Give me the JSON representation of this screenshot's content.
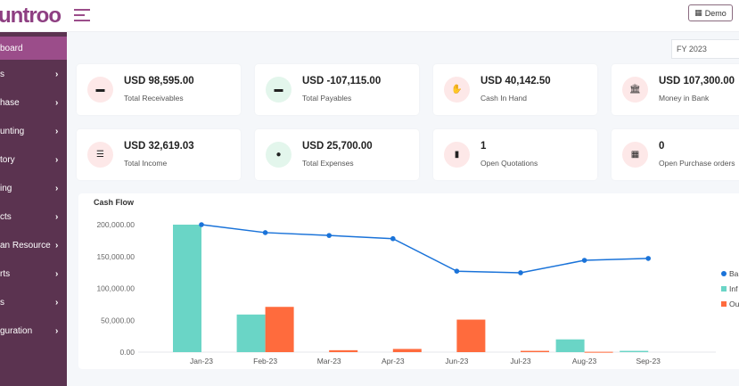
{
  "header": {
    "logo": "untroo",
    "company_button": "Demo",
    "icons": {
      "menu": "hamburger-icon",
      "company": "building-icon"
    }
  },
  "sidebar": {
    "items": [
      {
        "label": "board",
        "active": true
      },
      {
        "label": "s"
      },
      {
        "label": "hase"
      },
      {
        "label": "unting"
      },
      {
        "label": "tory"
      },
      {
        "label": "ing"
      },
      {
        "label": "cts"
      },
      {
        "label": "an Resource"
      },
      {
        "label": "rts"
      },
      {
        "label": "s"
      },
      {
        "label": "guration"
      }
    ],
    "chevron": "›"
  },
  "fiscal_year": "FY 2023",
  "cards": [
    {
      "value": "USD 98,595.00",
      "label": "Total Receivables",
      "icon": "money-icon",
      "color": "#fde8e8"
    },
    {
      "value": "USD -107,115.00",
      "label": "Total Payables",
      "icon": "money-icon",
      "color": "#e3f6ec"
    },
    {
      "value": "USD 40,142.50",
      "label": "Cash In Hand",
      "icon": "hand-coin-icon",
      "color": "#fde8e8"
    },
    {
      "value": "USD 107,300.00",
      "label": "Money in Bank",
      "icon": "bank-icon",
      "color": "#fde8e8"
    },
    {
      "value": "USD 32,619.03",
      "label": "Total Income",
      "icon": "list-icon",
      "color": "#fde8e8"
    },
    {
      "value": "USD 25,700.00",
      "label": "Total Expenses",
      "icon": "coins-icon",
      "color": "#e3f6ec"
    },
    {
      "value": "1",
      "label": "Open Quotations",
      "icon": "document-icon",
      "color": "#fde8e8"
    },
    {
      "value": "0",
      "label": "Open Purchase orders",
      "icon": "calendar-icon",
      "color": "#fde8e8"
    }
  ],
  "chart_data": {
    "type": "bar",
    "title": "Cash Flow",
    "categories": [
      "Jan-23",
      "Feb-23",
      "Mar-23",
      "Apr-23",
      "Jun-23",
      "Jul-23",
      "Aug-23",
      "Sep-23"
    ],
    "ylim": [
      0,
      200000
    ],
    "yticks": [
      "0.00",
      "50,000.00",
      "100,000.00",
      "150,000.00",
      "200,000.00"
    ],
    "legend_position": "right",
    "series": [
      {
        "name": "Ba",
        "type": "line",
        "color": "#1a73d9",
        "values": [
          200000,
          187500,
          183000,
          178000,
          127000,
          124500,
          144000,
          147000
        ]
      },
      {
        "name": "Inf",
        "type": "bar",
        "color": "#6ad5c6",
        "values": [
          200000,
          59000,
          0,
          0,
          0,
          0,
          20000,
          2000
        ]
      },
      {
        "name": "Ou",
        "type": "bar",
        "color": "#ff6b3d",
        "values": [
          0,
          71000,
          3000,
          5000,
          51000,
          2000,
          500,
          0
        ]
      }
    ]
  }
}
